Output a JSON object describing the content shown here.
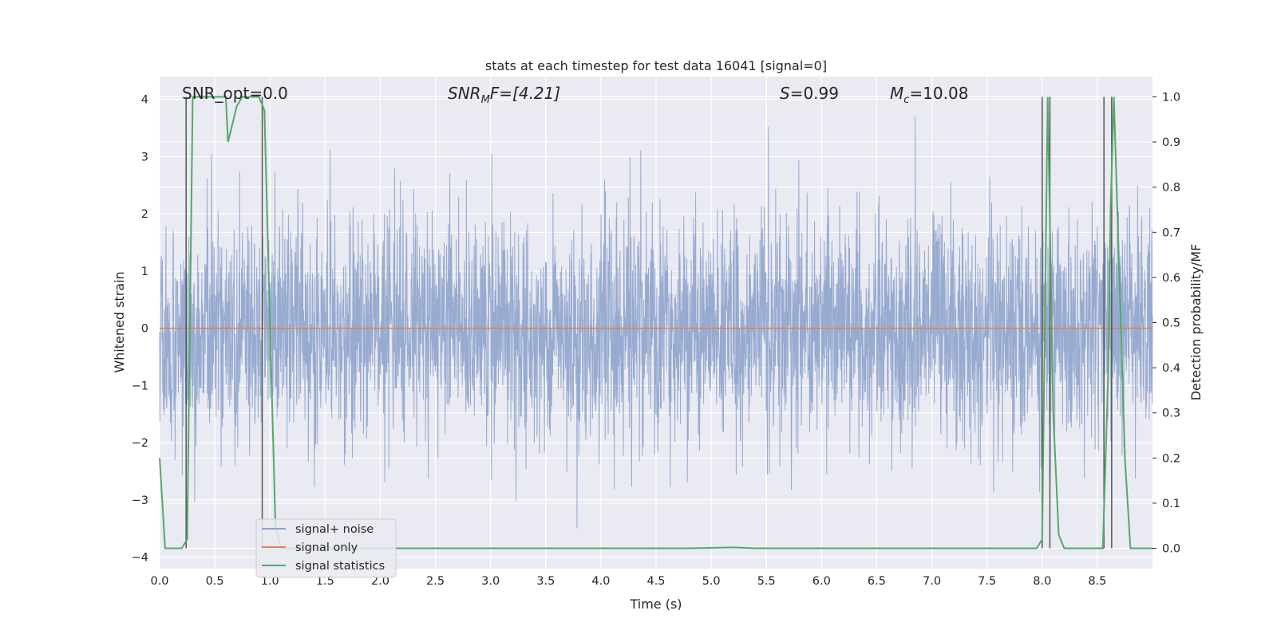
{
  "chart_data": {
    "type": "line",
    "title": "stats at each timestep for test data 16041 [signal=0]",
    "xlabel": "Time (s)",
    "ylabel_left": "Whitened strain",
    "ylabel_right": "Detection probability/MF",
    "xlim": [
      0.0,
      9.0
    ],
    "ylim_left": [
      -4.2,
      4.4
    ],
    "ylim_right": [
      -0.045,
      1.045
    ],
    "x_ticks": [
      "0.0",
      "0.5",
      "1.0",
      "1.5",
      "2.0",
      "2.5",
      "3.0",
      "3.5",
      "4.0",
      "4.5",
      "5.0",
      "5.5",
      "6.0",
      "6.5",
      "7.0",
      "7.5",
      "8.0",
      "8.5"
    ],
    "y_ticks_left": [
      "−4",
      "−3",
      "−2",
      "−1",
      "0",
      "1",
      "2",
      "3",
      "4"
    ],
    "y_ticks_right": [
      "0.0",
      "0.1",
      "0.2",
      "0.3",
      "0.4",
      "0.5",
      "0.6",
      "0.7",
      "0.8",
      "0.9",
      "1.0"
    ],
    "annotations": {
      "snr_opt": "SNR_opt=0.0",
      "snr_mf_sym": "SNR",
      "snr_mf_sub": "M",
      "snr_mf_rest": "F=[4.21]",
      "s_sym": "S",
      "s_rest": "=0.99",
      "mc_sym": "M",
      "mc_sub": "c",
      "mc_rest": "=10.08"
    },
    "legend": {
      "position": "lower-left",
      "entries": [
        "signal+ noise",
        "signal only",
        "signal statistics"
      ]
    },
    "series": [
      {
        "name": "signal+ noise",
        "color": "#8ea3cc",
        "description": "whitened strain noise, roughly within ±2 with spikes up to about ±3.5",
        "approx_range": [
          -3.65,
          4.0
        ]
      },
      {
        "name": "signal only",
        "color": "#dd8452",
        "values_note": "flat at zero",
        "x": [
          0.0,
          9.0
        ],
        "y": [
          0.0,
          0.0
        ]
      },
      {
        "name": "signal statistics",
        "color": "#55a868",
        "x": [
          0.0,
          0.05,
          0.1,
          0.15,
          0.2,
          0.25,
          0.3,
          0.35,
          0.4,
          0.45,
          0.5,
          0.55,
          0.6,
          0.62,
          0.7,
          0.75,
          0.8,
          0.85,
          0.9,
          0.95,
          1.0,
          1.05,
          1.1,
          1.2,
          4.6,
          4.8,
          5.2,
          5.4,
          7.95,
          8.0,
          8.05,
          8.1,
          8.15,
          8.2,
          8.5,
          8.55,
          8.6,
          8.62,
          8.65,
          8.7,
          8.75,
          8.8,
          9.0
        ],
        "y": [
          0.2,
          0.0,
          0.0,
          0.0,
          0.0,
          0.02,
          1.0,
          1.0,
          1.0,
          1.0,
          1.0,
          1.0,
          1.0,
          0.9,
          0.98,
          1.0,
          1.0,
          1.0,
          1.0,
          0.97,
          0.5,
          0.05,
          0.0,
          0.0,
          0.0,
          0.0,
          0.002,
          0.0,
          0.0,
          0.02,
          1.0,
          0.3,
          0.03,
          0.0,
          0.0,
          0.0,
          0.4,
          0.75,
          1.0,
          0.6,
          0.2,
          0.0,
          0.0
        ]
      }
    ],
    "vertical_markers_x": [
      0.24,
      0.93,
      8.0,
      8.07,
      8.56,
      8.63
    ],
    "colors": {
      "plot_background": "#eaeaf2",
      "grid": "#ffffff",
      "marker_line": "#555555",
      "text": "#262626"
    }
  }
}
